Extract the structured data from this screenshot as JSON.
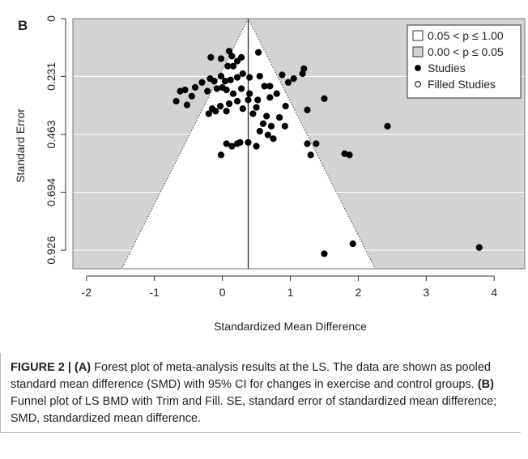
{
  "panel_label": "B",
  "caption": {
    "figure_label": "FIGURE 2 | ",
    "part_a_label": "(A)",
    "part_a_text": " Forest plot of meta-analysis results at the LS. The data are shown as pooled standard mean difference (SMD) with 95% CI for changes in exercise and control groups. ",
    "part_b_label": "(B)",
    "part_b_text": " Funnel plot of LS BMD with Trim and Fill. SE, standard error of standardized mean difference; SMD, standardized mean difference."
  },
  "chart_data": {
    "type": "scatter",
    "subtype": "funnel-plot",
    "title": "",
    "xlabel": "Standardized Mean Difference",
    "ylabel": "Standard Error",
    "xlim": [
      -2.2,
      4.45
    ],
    "ylim": [
      0.0,
      1.0
    ],
    "y_reversed": true,
    "x_ticks": [
      -2,
      -1,
      0,
      1,
      2,
      3,
      4
    ],
    "x_tick_labels": [
      "-2",
      "-1",
      "0",
      "1",
      "2",
      "3",
      "4"
    ],
    "y_ticks": [
      0,
      0.231,
      0.463,
      0.694,
      0.926
    ],
    "y_tick_labels": [
      "0",
      "0.231",
      "0.463",
      "0.694",
      "0.926"
    ],
    "grid": true,
    "center_line_x": 0.38,
    "funnel": {
      "apex": [
        0.38,
        0.0
      ],
      "bottom_left": [
        -1.48,
        1.0
      ],
      "bottom_right": [
        2.25,
        1.0
      ]
    },
    "colors": {
      "plot_background": "#d3d3d3",
      "funnel_fill": "#ffffff",
      "gridline": "#ffffff",
      "point": "#000000"
    },
    "legend": {
      "position": "top-right",
      "entries": [
        {
          "label": "0.05 < p ≤ 1.00",
          "symbol": "square-white"
        },
        {
          "label": "0.00 < p ≤ 0.05",
          "symbol": "square-gray"
        },
        {
          "label": "Studies",
          "symbol": "dot-filled"
        },
        {
          "label": "Filled  Studies",
          "symbol": "dot-open"
        }
      ]
    },
    "series": [
      {
        "name": "Studies",
        "points": [
          [
            -0.17,
            0.155
          ],
          [
            0.1,
            0.13
          ],
          [
            0.14,
            0.15
          ],
          [
            0.22,
            0.17
          ],
          [
            0.28,
            0.155
          ],
          [
            0.53,
            0.135
          ],
          [
            -0.02,
            0.16
          ],
          [
            0.08,
            0.19
          ],
          [
            0.16,
            0.19
          ],
          [
            -0.18,
            0.24
          ],
          [
            -0.12,
            0.25
          ],
          [
            -0.02,
            0.23
          ],
          [
            0.04,
            0.25
          ],
          [
            0.12,
            0.245
          ],
          [
            0.22,
            0.235
          ],
          [
            0.3,
            0.22
          ],
          [
            0.4,
            0.235
          ],
          [
            0.55,
            0.23
          ],
          [
            0.62,
            0.27
          ],
          [
            0.7,
            0.27
          ],
          [
            0.88,
            0.225
          ],
          [
            0.97,
            0.255
          ],
          [
            1.05,
            0.24
          ],
          [
            1.2,
            0.2
          ],
          [
            1.18,
            0.22
          ],
          [
            -0.3,
            0.255
          ],
          [
            -0.4,
            0.275
          ],
          [
            -0.55,
            0.285
          ],
          [
            -0.62,
            0.29
          ],
          [
            -0.45,
            0.31
          ],
          [
            -0.68,
            0.33
          ],
          [
            -0.52,
            0.345
          ],
          [
            -0.22,
            0.29
          ],
          [
            -0.08,
            0.28
          ],
          [
            0.0,
            0.275
          ],
          [
            0.06,
            0.285
          ],
          [
            0.16,
            0.3
          ],
          [
            0.28,
            0.28
          ],
          [
            0.4,
            0.3
          ],
          [
            0.52,
            0.325
          ],
          [
            0.7,
            0.315
          ],
          [
            0.8,
            0.3
          ],
          [
            0.93,
            0.35
          ],
          [
            1.25,
            0.365
          ],
          [
            1.5,
            0.32
          ],
          [
            -0.15,
            0.36
          ],
          [
            -0.03,
            0.35
          ],
          [
            0.1,
            0.34
          ],
          [
            0.22,
            0.33
          ],
          [
            0.38,
            0.325
          ],
          [
            0.5,
            0.355
          ],
          [
            0.65,
            0.39
          ],
          [
            -0.2,
            0.38
          ],
          [
            -0.1,
            0.37
          ],
          [
            0.06,
            0.37
          ],
          [
            0.3,
            0.36
          ],
          [
            0.45,
            0.38
          ],
          [
            0.84,
            0.395
          ],
          [
            0.6,
            0.42
          ],
          [
            0.72,
            0.43
          ],
          [
            0.92,
            0.43
          ],
          [
            0.55,
            0.45
          ],
          [
            0.67,
            0.465
          ],
          [
            0.75,
            0.48
          ],
          [
            2.43,
            0.43
          ],
          [
            1.25,
            0.5
          ],
          [
            1.38,
            0.5
          ],
          [
            1.3,
            0.545
          ],
          [
            1.8,
            0.54
          ],
          [
            1.87,
            0.545
          ],
          [
            0.06,
            0.5
          ],
          [
            0.14,
            0.51
          ],
          [
            0.22,
            0.5
          ],
          [
            0.26,
            0.495
          ],
          [
            0.38,
            0.495
          ],
          [
            0.5,
            0.51
          ],
          [
            -0.02,
            0.545
          ],
          [
            1.92,
            0.9
          ],
          [
            1.5,
            0.94
          ],
          [
            3.78,
            0.915
          ]
        ]
      },
      {
        "name": "Filled  Studies",
        "points": []
      }
    ]
  }
}
